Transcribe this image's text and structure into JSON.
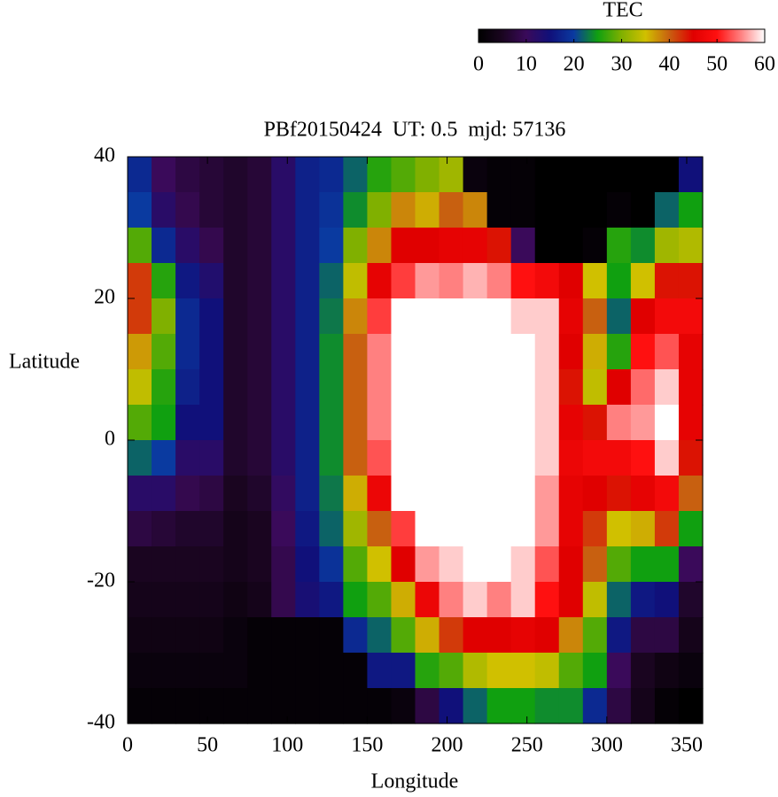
{
  "chart_data": {
    "type": "heatmap",
    "title": "PBf20150424  UT: 0.5  mjd: 57136",
    "x_label": "Longitude",
    "y_label": "Latitude",
    "colorbar_label": "TEC",
    "x": [
      7.5,
      22.5,
      37.5,
      52.5,
      67.5,
      82.5,
      97.5,
      112.5,
      127.5,
      142.5,
      157.5,
      172.5,
      187.5,
      202.5,
      217.5,
      232.5,
      247.5,
      262.5,
      277.5,
      292.5,
      307.5,
      322.5,
      337.5,
      352.5
    ],
    "y": [
      37.5,
      32.5,
      27.5,
      22.5,
      17.5,
      12.5,
      7.5,
      2.5,
      -2.5,
      -7.5,
      -12.5,
      -17.5,
      -22.5,
      -27.5,
      -32.5,
      -37.5
    ],
    "values": [
      [
        18,
        10,
        8,
        7,
        6,
        7,
        12,
        17,
        18,
        22,
        26,
        28,
        30,
        32,
        2,
        1,
        1,
        0,
        0,
        0,
        0,
        0,
        0,
        15
      ],
      [
        20,
        12,
        9,
        7,
        6,
        7,
        12,
        17,
        19,
        24,
        30,
        38,
        36,
        40,
        38,
        1,
        1,
        0,
        0,
        0,
        1,
        0,
        22,
        25
      ],
      [
        28,
        18,
        12,
        9,
        6,
        7,
        12,
        17,
        20,
        30,
        38,
        45,
        45,
        46,
        46,
        44,
        10,
        0,
        0,
        1,
        26,
        24,
        32,
        33
      ],
      [
        42,
        26,
        16,
        13,
        6,
        7,
        12,
        17,
        22,
        34,
        46,
        52,
        56,
        55,
        57,
        55,
        50,
        48,
        45,
        35,
        25,
        35,
        44,
        44
      ],
      [
        42,
        30,
        18,
        15,
        6,
        7,
        12,
        17,
        23,
        38,
        52,
        60,
        60,
        60,
        60,
        60,
        58,
        58,
        46,
        40,
        22,
        45,
        48,
        48
      ],
      [
        37,
        28,
        18,
        15,
        6,
        7,
        12,
        17,
        24,
        40,
        55,
        60,
        60,
        60,
        60,
        60,
        60,
        58,
        45,
        36,
        26,
        50,
        53,
        46
      ],
      [
        34,
        26,
        17,
        15,
        6,
        7,
        12,
        17,
        24,
        40,
        55,
        60,
        60,
        60,
        60,
        60,
        60,
        58,
        44,
        34,
        45,
        54,
        58,
        46
      ],
      [
        28,
        25,
        15,
        15,
        6,
        7,
        12,
        17,
        24,
        40,
        55,
        60,
        60,
        60,
        60,
        60,
        60,
        58,
        46,
        44,
        55,
        56,
        60,
        46
      ],
      [
        22,
        20,
        12,
        12,
        6,
        7,
        12,
        17,
        24,
        40,
        53,
        60,
        60,
        60,
        60,
        60,
        60,
        58,
        47,
        48,
        48,
        50,
        58,
        44
      ],
      [
        12,
        12,
        9,
        8,
        5,
        6,
        11,
        17,
        23,
        36,
        47,
        60,
        60,
        60,
        60,
        60,
        60,
        56,
        46,
        45,
        44,
        46,
        48,
        40
      ],
      [
        8,
        7,
        6,
        6,
        4,
        5,
        10,
        16,
        22,
        32,
        40,
        52,
        60,
        60,
        60,
        60,
        60,
        56,
        46,
        42,
        35,
        36,
        42,
        25
      ],
      [
        5,
        5,
        5,
        5,
        4,
        5,
        9,
        15,
        19,
        28,
        35,
        45,
        56,
        58,
        60,
        60,
        58,
        53,
        45,
        40,
        28,
        25,
        25,
        10
      ],
      [
        4,
        4,
        4,
        4,
        3,
        4,
        9,
        14,
        16,
        25,
        28,
        36,
        47,
        55,
        58,
        55,
        58,
        50,
        45,
        34,
        22,
        16,
        15,
        6
      ],
      [
        3,
        3,
        3,
        3,
        2,
        1,
        1,
        1,
        1,
        18,
        22,
        28,
        36,
        42,
        45,
        45,
        46,
        45,
        38,
        28,
        16,
        8,
        8,
        4
      ],
      [
        2,
        2,
        2,
        2,
        2,
        1,
        1,
        1,
        1,
        1,
        16,
        16,
        26,
        28,
        33,
        35,
        35,
        34,
        28,
        25,
        10,
        5,
        3,
        2
      ],
      [
        1,
        1,
        1,
        1,
        1,
        1,
        1,
        1,
        1,
        1,
        1,
        2,
        8,
        15,
        22,
        25,
        25,
        24,
        24,
        18,
        8,
        4,
        1,
        0
      ]
    ],
    "xlim": [
      0,
      360
    ],
    "xticks": [
      0,
      50,
      100,
      150,
      200,
      250,
      300,
      350
    ],
    "ylim": [
      -40,
      40
    ],
    "yticks": [
      -40,
      -20,
      0,
      20,
      40
    ],
    "zlim": [
      0,
      60
    ],
    "zticks": [
      0,
      10,
      20,
      30,
      40,
      50,
      60
    ],
    "colormap": [
      "#000000",
      "#1a0520",
      "#3a0a5a",
      "#10107a",
      "#0a3aa0",
      "#10a010",
      "#80b000",
      "#d0c000",
      "#c86010",
      "#e00000",
      "#ff1010",
      "#ff8080",
      "#ffffff"
    ]
  }
}
